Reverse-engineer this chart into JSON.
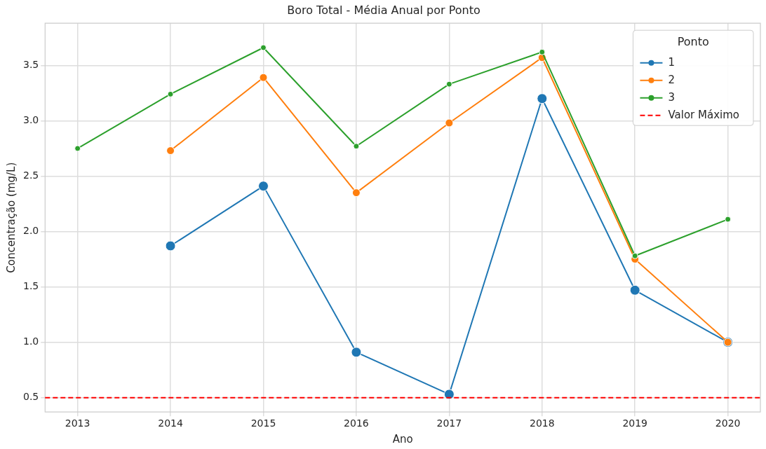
{
  "chart_data": {
    "type": "line",
    "title": "Boro Total - Média Anual por Ponto",
    "xlabel": "Ano",
    "ylabel": "Concentração (mg/L)",
    "legend_title": "Ponto",
    "x": [
      2013,
      2014,
      2015,
      2016,
      2017,
      2018,
      2019,
      2020
    ],
    "series": [
      {
        "name": "1",
        "color": "#1f77b4",
        "values": [
          null,
          1.87,
          2.41,
          0.91,
          0.53,
          3.2,
          1.47,
          1.0
        ]
      },
      {
        "name": "2",
        "color": "#ff7f0e",
        "values": [
          null,
          2.73,
          3.39,
          2.35,
          2.98,
          3.57,
          1.75,
          1.0
        ]
      },
      {
        "name": "3",
        "color": "#2ca02c",
        "values": [
          2.75,
          3.24,
          3.66,
          2.77,
          3.33,
          3.62,
          1.78,
          2.11
        ]
      }
    ],
    "xlim": [
      2012.65,
      2020.35
    ],
    "xticks": [
      2013,
      2014,
      2015,
      2016,
      2017,
      2018,
      2019,
      2020
    ],
    "ylim": [
      0.37,
      3.88
    ],
    "yticks": [
      0.5,
      {
        "value": 1,
        "label": "1.0"
      },
      1.5,
      {
        "value": 2,
        "label": "2.0"
      },
      2.5,
      {
        "value": 3,
        "label": "3.0"
      },
      3.5
    ],
    "ref_lines": [
      {
        "axis": "y",
        "value": 0.5,
        "label": "Valor Máximo",
        "color": "#ff0000",
        "line_style": "dashed"
      }
    ],
    "grid": true,
    "legend": "top right",
    "marker": "circle",
    "line_style": "solid"
  }
}
